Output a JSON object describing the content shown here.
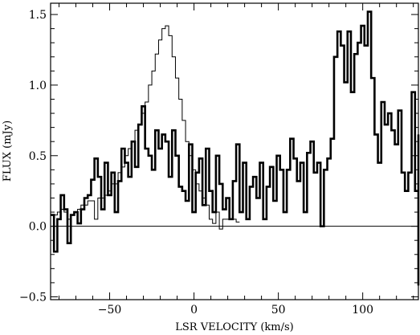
{
  "chart_data": {
    "type": "line",
    "title": "",
    "xlabel": "LSR VELOCITY (km/s)",
    "ylabel": "FLUX (mJy)",
    "xlim": [
      -85,
      133
    ],
    "ylim": [
      -0.52,
      1.58
    ],
    "x_ticks": [
      -50,
      0,
      50,
      100
    ],
    "x_tick_labels": [
      "−50",
      "0",
      "50",
      "100"
    ],
    "y_ticks": [
      -0.5,
      0.0,
      0.5,
      1.0,
      1.5
    ],
    "y_tick_labels": [
      "−0.5",
      "0.0",
      "0.5",
      "1.0",
      "1.5"
    ],
    "x_minor_step": 10,
    "y_minor_step": 0.1,
    "zero_line": 0,
    "grid": false,
    "series": [
      {
        "style": "thick",
        "step_width": 2,
        "x_start": -85,
        "values": [
          0.08,
          -0.18,
          0.05,
          0.22,
          0.12,
          -0.12,
          0.08,
          0.1,
          0.02,
          0.12,
          0.2,
          0.22,
          0.33,
          0.48,
          0.35,
          0.12,
          0.45,
          0.22,
          0.38,
          0.1,
          0.32,
          0.55,
          0.45,
          0.35,
          0.6,
          0.42,
          0.72,
          0.85,
          0.55,
          0.5,
          0.4,
          0.68,
          0.55,
          0.65,
          0.6,
          0.35,
          0.68,
          0.5,
          0.28,
          0.25,
          0.18,
          0.58,
          0.1,
          0.38,
          0.48,
          0.15,
          0.55,
          0.25,
          0.1,
          0.5,
          0.3,
          0.12,
          0.2,
          0.05,
          0.32,
          0.58,
          0.1,
          0.45,
          0.05,
          0.28,
          0.35,
          0.2,
          0.45,
          0.05,
          0.28,
          0.42,
          0.18,
          0.5,
          0.4,
          0.1,
          0.4,
          0.62,
          0.48,
          0.32,
          0.45,
          0.1,
          0.52,
          0.6,
          0.38,
          0.45,
          0.0,
          0.4,
          0.48,
          0.62,
          1.2,
          1.38,
          1.28,
          1.02,
          1.38,
          0.95,
          1.22,
          1.3,
          1.42,
          1.28,
          1.52,
          1.05,
          0.65,
          0.45,
          0.88,
          0.72,
          0.8,
          0.68,
          0.58,
          0.82,
          0.38,
          0.25,
          0.38,
          0.95,
          0.25,
          0.62,
          -0.05,
          -0.04,
          0.1,
          0.05,
          0.28,
          0.05,
          0.08,
          0.65,
          -0.05,
          0.25,
          0.05,
          0.1,
          -0.1,
          0.42,
          0.15,
          -0.15,
          0.25,
          0.05,
          0.35,
          0.0,
          0.22,
          0.25,
          0.18,
          -0.08,
          0.18,
          0.05,
          0.5,
          0.1,
          0.2,
          -0.05,
          0.35,
          0.05,
          -0.42,
          -0.05,
          0.1
        ]
      },
      {
        "style": "thin",
        "step_width": 2,
        "x_start": -83,
        "values": [
          0.08,
          0.1,
          0.12,
          0.1,
          0.05,
          0.08,
          0.1,
          0.12,
          0.15,
          0.15,
          0.18,
          0.18,
          0.05,
          0.2,
          0.2,
          0.22,
          0.25,
          0.3,
          0.3,
          0.38,
          0.42,
          0.5,
          0.55,
          0.6,
          0.68,
          0.72,
          0.8,
          0.88,
          1.0,
          1.1,
          1.22,
          1.32,
          1.4,
          1.42,
          1.35,
          1.2,
          1.05,
          0.9,
          0.75,
          0.6,
          0.5,
          0.4,
          0.3,
          0.25,
          0.2,
          0.15,
          0.05,
          0.02,
          0.1,
          -0.02,
          0.05,
          0.05,
          0.05,
          0.05,
          0.03
        ]
      }
    ]
  }
}
